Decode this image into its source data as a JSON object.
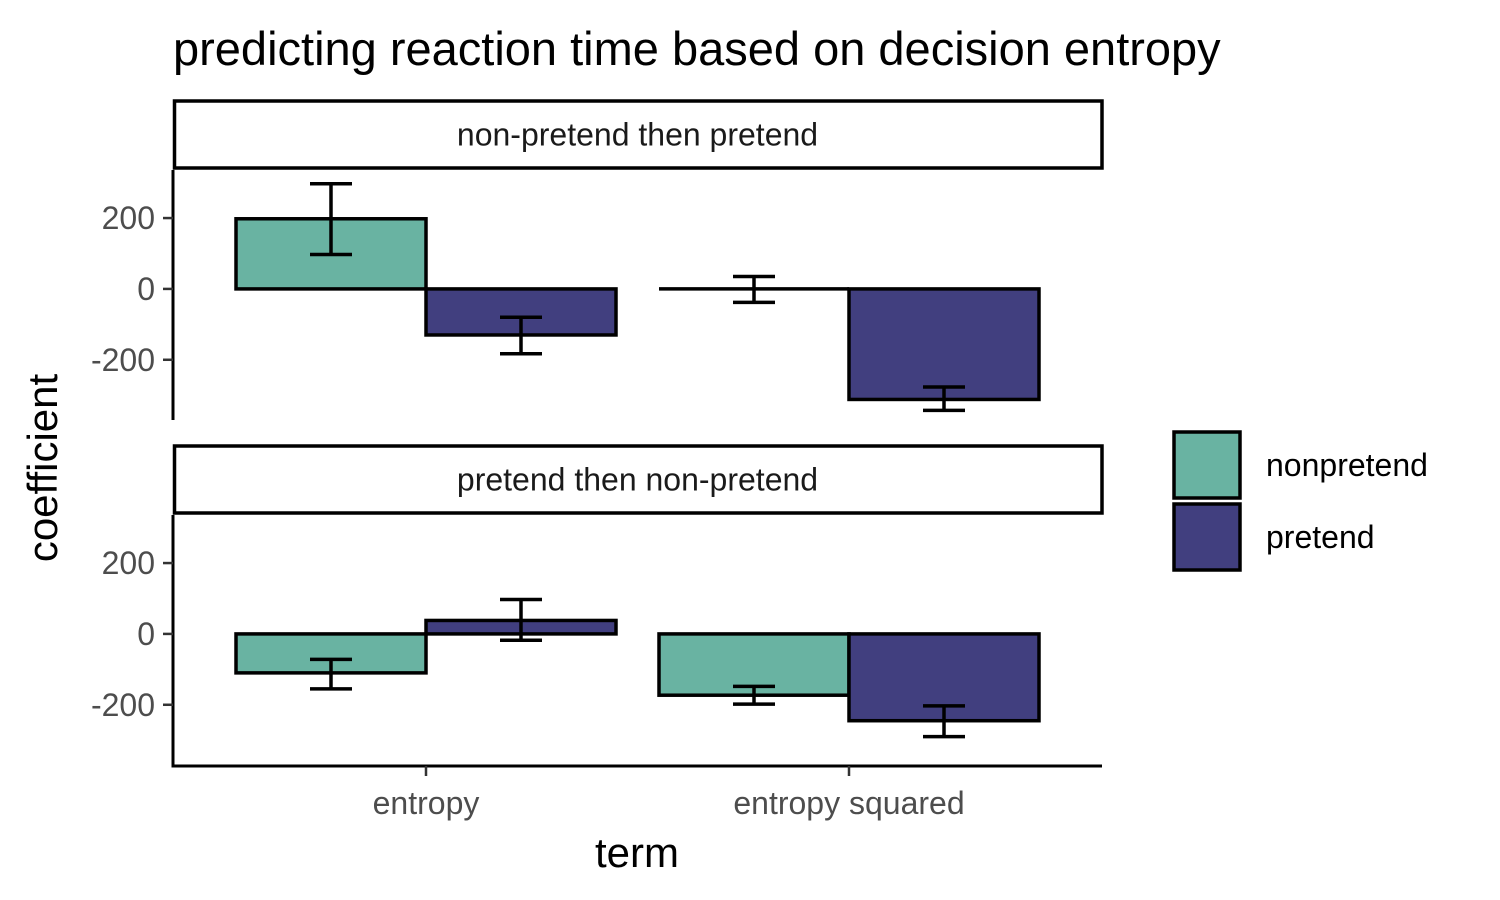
{
  "colors": {
    "nonpretend": "#69b3a2",
    "pretend": "#413f7f",
    "outline": "#000000"
  },
  "chart_data": {
    "type": "bar",
    "title": "predicting reaction time based on decision entropy",
    "xlabel": "term",
    "ylabel": "coefficient",
    "categories": [
      "entropy",
      "entropy squared"
    ],
    "yticks": [
      200,
      0,
      -200
    ],
    "ytick_labels": [
      "200",
      "0",
      "-200"
    ],
    "ylim": [
      -370,
      330
    ],
    "grid": false,
    "legend": {
      "placement": "right",
      "entries": [
        "nonpretend",
        "pretend"
      ]
    },
    "facets": [
      {
        "label": "non-pretend then pretend",
        "series": [
          {
            "name": "nonpretend",
            "values": [
              198,
              0
            ],
            "err_low": [
              97,
              -38
            ],
            "err_high": [
              297,
              35
            ]
          },
          {
            "name": "pretend",
            "values": [
              -130,
              -312
            ],
            "err_low": [
              -183,
              -343
            ],
            "err_high": [
              -80,
              -277
            ]
          }
        ]
      },
      {
        "label": "pretend then non-pretend",
        "series": [
          {
            "name": "nonpretend",
            "values": [
              -110,
              -173
            ],
            "err_low": [
              -155,
              -198
            ],
            "err_high": [
              -72,
              -148
            ]
          },
          {
            "name": "pretend",
            "values": [
              38,
              -245
            ],
            "err_low": [
              -18,
              -290
            ],
            "err_high": [
              97,
              -203
            ]
          }
        ]
      }
    ]
  }
}
